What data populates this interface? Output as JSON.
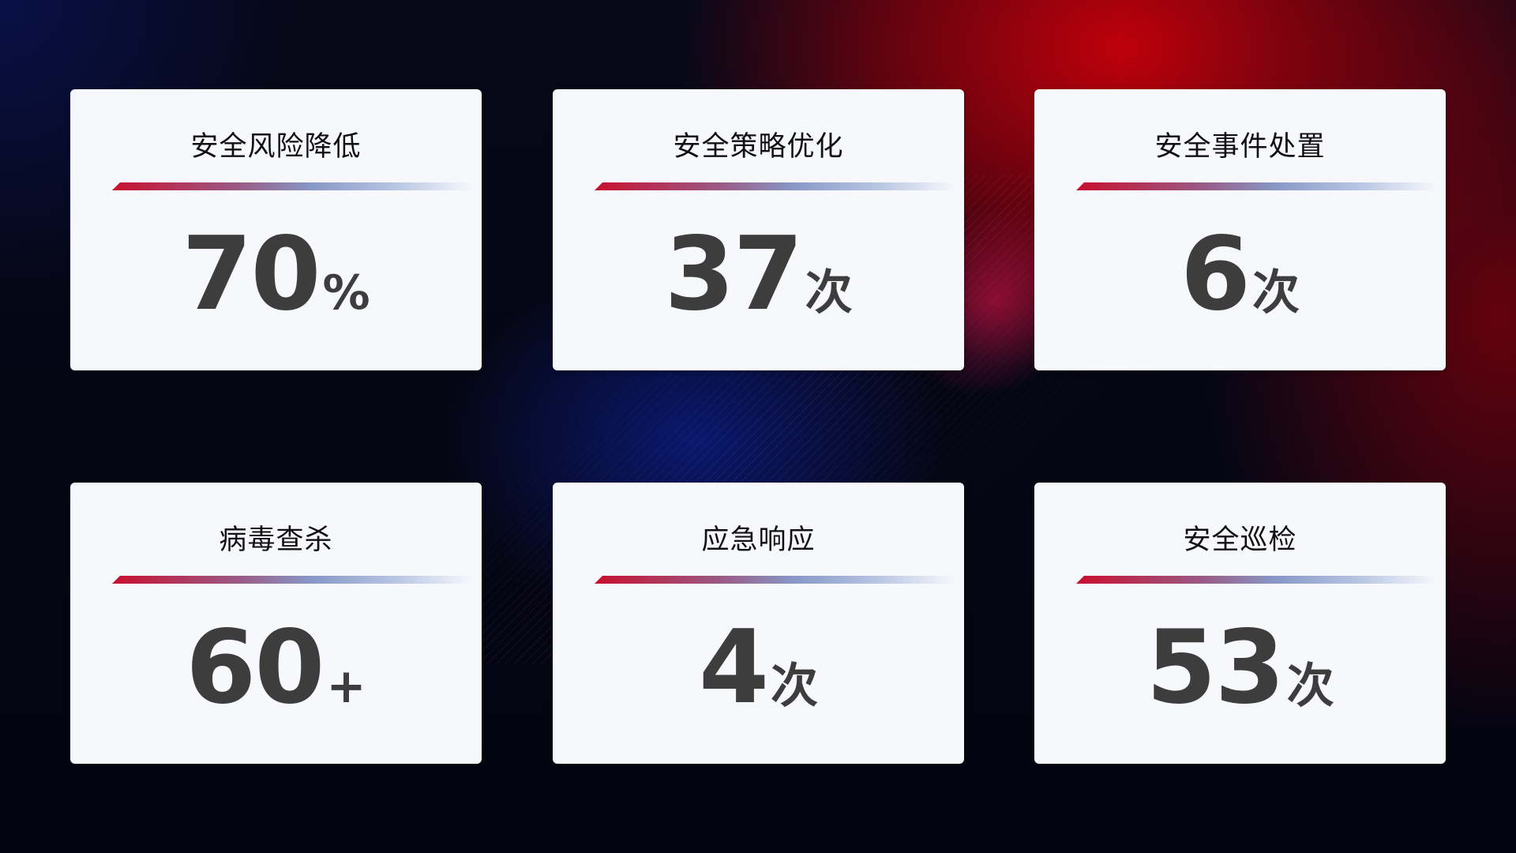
{
  "colors": {
    "accent_red": "#c8102e",
    "card_bg": "#f6f8fc",
    "value_text": "#3d3d3d"
  },
  "cards": [
    {
      "title": "安全风险降低",
      "value": "70",
      "unit": "%"
    },
    {
      "title": "安全策略优化",
      "value": "37",
      "unit": "次"
    },
    {
      "title": "安全事件处置",
      "value": "6",
      "unit": "次"
    },
    {
      "title": "病毒查杀",
      "value": "60",
      "unit": "+"
    },
    {
      "title": "应急响应",
      "value": "4",
      "unit": "次"
    },
    {
      "title": "安全巡检",
      "value": "53",
      "unit": "次"
    }
  ]
}
